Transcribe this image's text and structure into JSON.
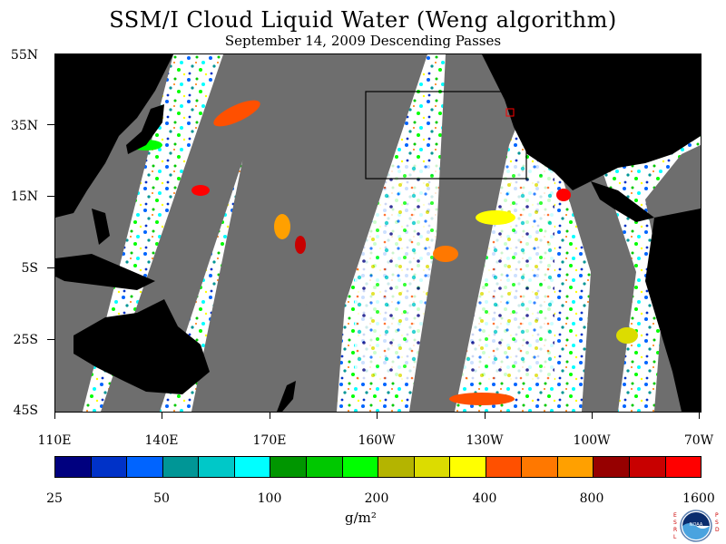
{
  "title": "SSM/I Cloud Liquid Water (Weng algorithm)",
  "subtitle": "September 14, 2009  Descending Passes",
  "map": {
    "lat_labels": [
      "55N",
      "35N",
      "15N",
      "5S",
      "25S",
      "45S"
    ],
    "lon_labels": [
      "110E",
      "140E",
      "170E",
      "160W",
      "130W",
      "100W",
      "70W"
    ],
    "colors": {
      "land": "#000000",
      "no_data": "#6e6e6e",
      "clear": "#ffffff",
      "box": "#000000",
      "marker": "#ff0000"
    }
  },
  "colorbar": {
    "colors": [
      "#00007f",
      "#0032c8",
      "#0064ff",
      "#009696",
      "#00c8c8",
      "#00ffff",
      "#009600",
      "#00c800",
      "#00ff00",
      "#b4b400",
      "#dcdc00",
      "#ffff00",
      "#ff5000",
      "#ff7800",
      "#ffa000",
      "#960000",
      "#c80000",
      "#ff0000"
    ],
    "labels": [
      "25",
      "50",
      "100",
      "200",
      "400",
      "800",
      "1600"
    ],
    "units": "g/m²"
  },
  "logo": {
    "left_text": "ESRL",
    "right_text": "PSD",
    "center_text": "NOAA"
  }
}
